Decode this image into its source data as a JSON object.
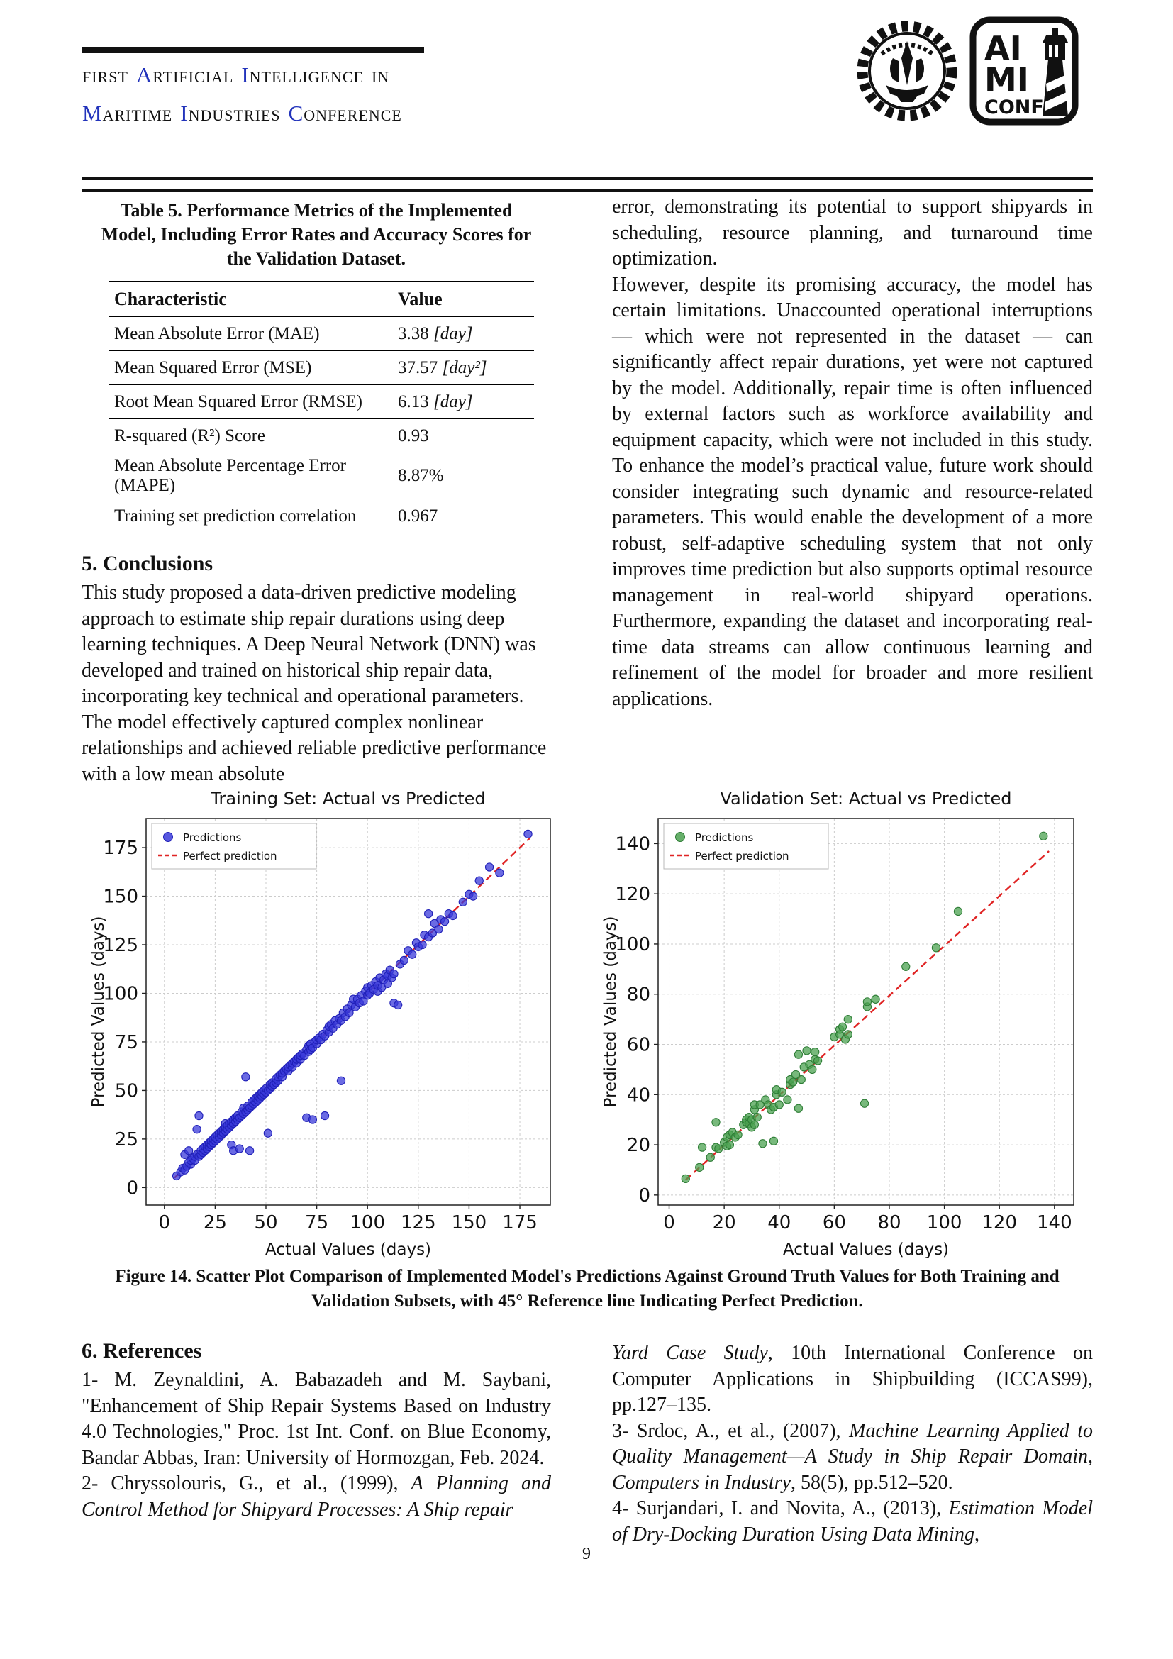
{
  "page_number": "9",
  "header": {
    "accent_color": "#2233bb",
    "line1": [
      {
        "head": "",
        "tail": "FIRST"
      },
      {
        "head": "A",
        "tail": "RTIFICIAL"
      },
      {
        "head": "I",
        "tail": "NTELLIGENCE"
      },
      {
        "head": "",
        "tail": "IN"
      }
    ],
    "line2": [
      {
        "head": "M",
        "tail": "ARITIME"
      },
      {
        "head": "I",
        "tail": "NDUSTRIES"
      },
      {
        "head": "C",
        "tail": "ONFERENCE"
      }
    ],
    "logo_left_name": "sharif-university-emblem",
    "logo_right": {
      "l1": "AI",
      "l2": "MI",
      "l3": "CONF"
    }
  },
  "table": {
    "caption_lines": [
      "Table 5. Performance Metrics of the Implemented",
      "Model, Including Error Rates and Accuracy Scores for",
      "the Validation Dataset."
    ],
    "columns": [
      "Characteristic",
      "Value"
    ],
    "rows": [
      {
        "label": "Mean Absolute Error (MAE)",
        "value": "3.38",
        "unit": "[day]"
      },
      {
        "label": "Mean Squared Error (MSE)",
        "value": "37.57",
        "unit": "[day²]"
      },
      {
        "label": "Root Mean Squared Error (RMSE)",
        "value": "6.13",
        "unit": "[day]"
      },
      {
        "label": "R-squared (R²) Score",
        "value": "0.93",
        "unit": ""
      },
      {
        "label": "Mean Absolute Percentage Error (MAPE)",
        "value": "8.87%",
        "unit": ""
      },
      {
        "label": "Training set prediction correlation",
        "value": "0.967",
        "unit": ""
      }
    ]
  },
  "conclusions": {
    "heading": "5. Conclusions",
    "body": "This study proposed a data-driven predictive modeling approach to estimate ship repair durations using deep learning techniques. A Deep Neural Network (DNN) was developed and trained on historical ship repair data, incorporating key technical and operational parameters. The model effectively captured complex nonlinear relationships and achieved reliable predictive performance with a low mean absolute"
  },
  "right_column": {
    "para1": "error, demonstrating its potential to support shipyards in scheduling, resource planning, and turnaround time optimization.",
    "para2": "However, despite its promising accuracy, the model has certain limitations. Unaccounted operational interruptions — which were not represented in the dataset — can significantly affect repair durations, yet were not captured by the model. Additionally, repair time is often influenced by external factors such as workforce availability and equipment capacity, which were not included in this study. To enhance the model’s practical value, future work should consider integrating such dynamic and resource-related parameters. This would enable the development of a more robust, self-adaptive scheduling system that not only improves time prediction but also supports optimal resource management in real-world shipyard operations. Furthermore, expanding the dataset and incorporating real-time data streams can allow continuous learning and refinement of the model for broader and more resilient applications."
  },
  "figure": {
    "caption_lines": [
      "Figure 14. Scatter Plot Comparison of Implemented Model's Predictions Against Ground Truth Values for Both Training and",
      "Validation Subsets, with 45° Reference line Indicating Perfect Prediction."
    ]
  },
  "references": {
    "heading": "6. References",
    "left": [
      [
        {
          "t": "1- M. Zeynaldini, A. Babazadeh and M. Saybani, \"Enhancement of Ship Repair Systems Based on Industry 4.0 Technologies,\" Proc. 1st Int. Conf. on Blue Economy, Bandar Abbas, Iran: University of Hormozgan, Feb. 2024.",
          "i": false
        }
      ],
      [
        {
          "t": "2- Chryssolouris, G., et al., (1999), ",
          "i": false
        },
        {
          "t": "A Planning and Control Method for Shipyard Processes: A Ship repair",
          "i": true
        }
      ]
    ],
    "right": [
      [
        {
          "t": "Yard Case Study",
          "i": true
        },
        {
          "t": ", 10th International Conference on Computer Applications in Shipbuilding (ICCAS99), pp.127–135.",
          "i": false
        }
      ],
      [
        {
          "t": "3- Srdoc, A., et al., (2007), ",
          "i": false
        },
        {
          "t": "Machine Learning Applied to Quality Management—A Study in Ship Repair Domain, Computers in Industry",
          "i": true
        },
        {
          "t": ", 58(5), pp.512–520.",
          "i": false
        }
      ],
      [
        {
          "t": "4- Surjandari, I. and Novita, A., (2013), ",
          "i": false
        },
        {
          "t": "Estimation Model of Dry-Docking Duration Using Data Mining",
          "i": true
        },
        {
          "t": ",",
          "i": false
        }
      ]
    ]
  },
  "chart_data": [
    {
      "type": "scatter",
      "title": "Training Set: Actual vs Predicted",
      "xlabel": "Actual Values (days)",
      "ylabel": "Predicted Values (days)",
      "xlim": [
        -9,
        190
      ],
      "ylim": [
        -9,
        190
      ],
      "xticks": [
        0,
        25,
        50,
        75,
        100,
        125,
        150,
        175
      ],
      "yticks": [
        0,
        25,
        50,
        75,
        100,
        125,
        150,
        175
      ],
      "grid": true,
      "legend": [
        "Predictions",
        "Perfect prediction"
      ],
      "legend_position": "upper left",
      "point_color": "#3a3ad9",
      "point_edge": "#2020b8",
      "line_color": "#e02424",
      "ref_line": {
        "x1": 5,
        "y1": 5,
        "x2": 180,
        "y2": 180
      },
      "points": [
        [
          6,
          6
        ],
        [
          8,
          8
        ],
        [
          9,
          10
        ],
        [
          10,
          9
        ],
        [
          10,
          17
        ],
        [
          11,
          11
        ],
        [
          12,
          13
        ],
        [
          12,
          19
        ],
        [
          13,
          12
        ],
        [
          13,
          14
        ],
        [
          14,
          15
        ],
        [
          15,
          14
        ],
        [
          15,
          16
        ],
        [
          16,
          17
        ],
        [
          16,
          30
        ],
        [
          17,
          16
        ],
        [
          17,
          37
        ],
        [
          18,
          17
        ],
        [
          18,
          19
        ],
        [
          19,
          18
        ],
        [
          19,
          20
        ],
        [
          20,
          19
        ],
        [
          20,
          21
        ],
        [
          21,
          20
        ],
        [
          21,
          22
        ],
        [
          22,
          21
        ],
        [
          22,
          23
        ],
        [
          23,
          22
        ],
        [
          23,
          24
        ],
        [
          24,
          23
        ],
        [
          24,
          25
        ],
        [
          25,
          24
        ],
        [
          25,
          26
        ],
        [
          26,
          25
        ],
        [
          26,
          27
        ],
        [
          27,
          26
        ],
        [
          27,
          28
        ],
        [
          28,
          27
        ],
        [
          28,
          29
        ],
        [
          29,
          28
        ],
        [
          29,
          30
        ],
        [
          30,
          29
        ],
        [
          30,
          31
        ],
        [
          30,
          33
        ],
        [
          31,
          30
        ],
        [
          31,
          32
        ],
        [
          32,
          31
        ],
        [
          32,
          33
        ],
        [
          33,
          22
        ],
        [
          33,
          32
        ],
        [
          33,
          34
        ],
        [
          34,
          19
        ],
        [
          34,
          33
        ],
        [
          34,
          35
        ],
        [
          35,
          34
        ],
        [
          35,
          36
        ],
        [
          36,
          35
        ],
        [
          36,
          37
        ],
        [
          37,
          20
        ],
        [
          37,
          36
        ],
        [
          38,
          37
        ],
        [
          38,
          39
        ],
        [
          39,
          38
        ],
        [
          39,
          41
        ],
        [
          40,
          39
        ],
        [
          40,
          57
        ],
        [
          41,
          40
        ],
        [
          41,
          42
        ],
        [
          42,
          19
        ],
        [
          42,
          41
        ],
        [
          43,
          42
        ],
        [
          43,
          44
        ],
        [
          44,
          43
        ],
        [
          44,
          45
        ],
        [
          45,
          44
        ],
        [
          45,
          46
        ],
        [
          46,
          45
        ],
        [
          46,
          47
        ],
        [
          47,
          46
        ],
        [
          47,
          48
        ],
        [
          48,
          47
        ],
        [
          48,
          49
        ],
        [
          49,
          48
        ],
        [
          49,
          50
        ],
        [
          50,
          49
        ],
        [
          50,
          51
        ],
        [
          51,
          28
        ],
        [
          51,
          50
        ],
        [
          52,
          51
        ],
        [
          52,
          53
        ],
        [
          53,
          52
        ],
        [
          53,
          54
        ],
        [
          54,
          53
        ],
        [
          55,
          54
        ],
        [
          55,
          56
        ],
        [
          56,
          55
        ],
        [
          56,
          57
        ],
        [
          57,
          58
        ],
        [
          58,
          57
        ],
        [
          58,
          59
        ],
        [
          59,
          60
        ],
        [
          60,
          61
        ],
        [
          61,
          60
        ],
        [
          61,
          62
        ],
        [
          62,
          63
        ],
        [
          63,
          62
        ],
        [
          63,
          64
        ],
        [
          64,
          65
        ],
        [
          65,
          64
        ],
        [
          65,
          66
        ],
        [
          66,
          67
        ],
        [
          67,
          66
        ],
        [
          67,
          68
        ],
        [
          68,
          69
        ],
        [
          69,
          68
        ],
        [
          70,
          36
        ],
        [
          70,
          71
        ],
        [
          71,
          70
        ],
        [
          71,
          73
        ],
        [
          72,
          71
        ],
        [
          72,
          74
        ],
        [
          73,
          35
        ],
        [
          73,
          72
        ],
        [
          74,
          75
        ],
        [
          75,
          74
        ],
        [
          75,
          76
        ],
        [
          76,
          77
        ],
        [
          77,
          76
        ],
        [
          78,
          79
        ],
        [
          79,
          37
        ],
        [
          79,
          78
        ],
        [
          80,
          81
        ],
        [
          81,
          80
        ],
        [
          81,
          83
        ],
        [
          82,
          84
        ],
        [
          83,
          82
        ],
        [
          84,
          86
        ],
        [
          85,
          84
        ],
        [
          86,
          87
        ],
        [
          87,
          55
        ],
        [
          87,
          86
        ],
        [
          88,
          90
        ],
        [
          89,
          88
        ],
        [
          90,
          92
        ],
        [
          91,
          90
        ],
        [
          92,
          94
        ],
        [
          93,
          97
        ],
        [
          94,
          93
        ],
        [
          95,
          97
        ],
        [
          96,
          95
        ],
        [
          97,
          99
        ],
        [
          98,
          96
        ],
        [
          99,
          101
        ],
        [
          100,
          99
        ],
        [
          100,
          103
        ],
        [
          101,
          100
        ],
        [
          102,
          104
        ],
        [
          103,
          102
        ],
        [
          104,
          106
        ],
        [
          105,
          101
        ],
        [
          105,
          104
        ],
        [
          106,
          108
        ],
        [
          107,
          103
        ],
        [
          108,
          107
        ],
        [
          109,
          110
        ],
        [
          110,
          105
        ],
        [
          110,
          109
        ],
        [
          111,
          112
        ],
        [
          112,
          108
        ],
        [
          113,
          95
        ],
        [
          113,
          110
        ],
        [
          115,
          94
        ],
        [
          116,
          115
        ],
        [
          118,
          117
        ],
        [
          120,
          122
        ],
        [
          122,
          120
        ],
        [
          124,
          126
        ],
        [
          125,
          124
        ],
        [
          127,
          125
        ],
        [
          128,
          130
        ],
        [
          130,
          129
        ],
        [
          130,
          141
        ],
        [
          132,
          131
        ],
        [
          133,
          136
        ],
        [
          135,
          133
        ],
        [
          136,
          138
        ],
        [
          138,
          137
        ],
        [
          140,
          141
        ],
        [
          142,
          140
        ],
        [
          147,
          147
        ],
        [
          150,
          151
        ],
        [
          152,
          150
        ],
        [
          155,
          158
        ],
        [
          160,
          165
        ],
        [
          165,
          162
        ],
        [
          179,
          182
        ]
      ]
    },
    {
      "type": "scatter",
      "title": "Validation Set: Actual vs Predicted",
      "xlabel": "Actual Values (days)",
      "ylabel": "Predicted Values (days)",
      "xlim": [
        -4,
        147
      ],
      "ylim": [
        -4,
        150
      ],
      "xticks": [
        0,
        20,
        40,
        60,
        80,
        100,
        120,
        140
      ],
      "yticks": [
        0,
        20,
        40,
        60,
        80,
        100,
        120,
        140
      ],
      "grid": true,
      "legend": [
        "Predictions",
        "Perfect prediction"
      ],
      "legend_position": "upper left",
      "point_color": "#4ba150",
      "point_edge": "#2e7d36",
      "line_color": "#e02424",
      "ref_line": {
        "x1": 6,
        "y1": 6,
        "x2": 138,
        "y2": 137
      },
      "points": [
        [
          6,
          6.5
        ],
        [
          11,
          11
        ],
        [
          12,
          19
        ],
        [
          15,
          15
        ],
        [
          17,
          19
        ],
        [
          17,
          29
        ],
        [
          18,
          18.5
        ],
        [
          20,
          21
        ],
        [
          21,
          19.5
        ],
        [
          21,
          23
        ],
        [
          22,
          20
        ],
        [
          22,
          24
        ],
        [
          23,
          25
        ],
        [
          24,
          23
        ],
        [
          25,
          24
        ],
        [
          27,
          28
        ],
        [
          28,
          29
        ],
        [
          28,
          30
        ],
        [
          29,
          28.5
        ],
        [
          29,
          31
        ],
        [
          30,
          27
        ],
        [
          30,
          30
        ],
        [
          31,
          28
        ],
        [
          31,
          34
        ],
        [
          31,
          36
        ],
        [
          32,
          31
        ],
        [
          33,
          36
        ],
        [
          34,
          20.5
        ],
        [
          35,
          38
        ],
        [
          36,
          36
        ],
        [
          37,
          34
        ],
        [
          38,
          21.5
        ],
        [
          38,
          35
        ],
        [
          39,
          40
        ],
        [
          39,
          42
        ],
        [
          40,
          36
        ],
        [
          41,
          41
        ],
        [
          43,
          38
        ],
        [
          44,
          44
        ],
        [
          44,
          46
        ],
        [
          45,
          45
        ],
        [
          46,
          48
        ],
        [
          47,
          34.5
        ],
        [
          47,
          56
        ],
        [
          48,
          46
        ],
        [
          49,
          51
        ],
        [
          50,
          57.5
        ],
        [
          51,
          52
        ],
        [
          52,
          50
        ],
        [
          53,
          54
        ],
        [
          53,
          57
        ],
        [
          54,
          53.5
        ],
        [
          60,
          63
        ],
        [
          62,
          64
        ],
        [
          62,
          66
        ],
        [
          63,
          67
        ],
        [
          64,
          62
        ],
        [
          65,
          64
        ],
        [
          65,
          70
        ],
        [
          71,
          36.5
        ],
        [
          72,
          75
        ],
        [
          72,
          77
        ],
        [
          75,
          78
        ],
        [
          86,
          91
        ],
        [
          97,
          98.5
        ],
        [
          105,
          113
        ],
        [
          136,
          143
        ]
      ]
    }
  ]
}
